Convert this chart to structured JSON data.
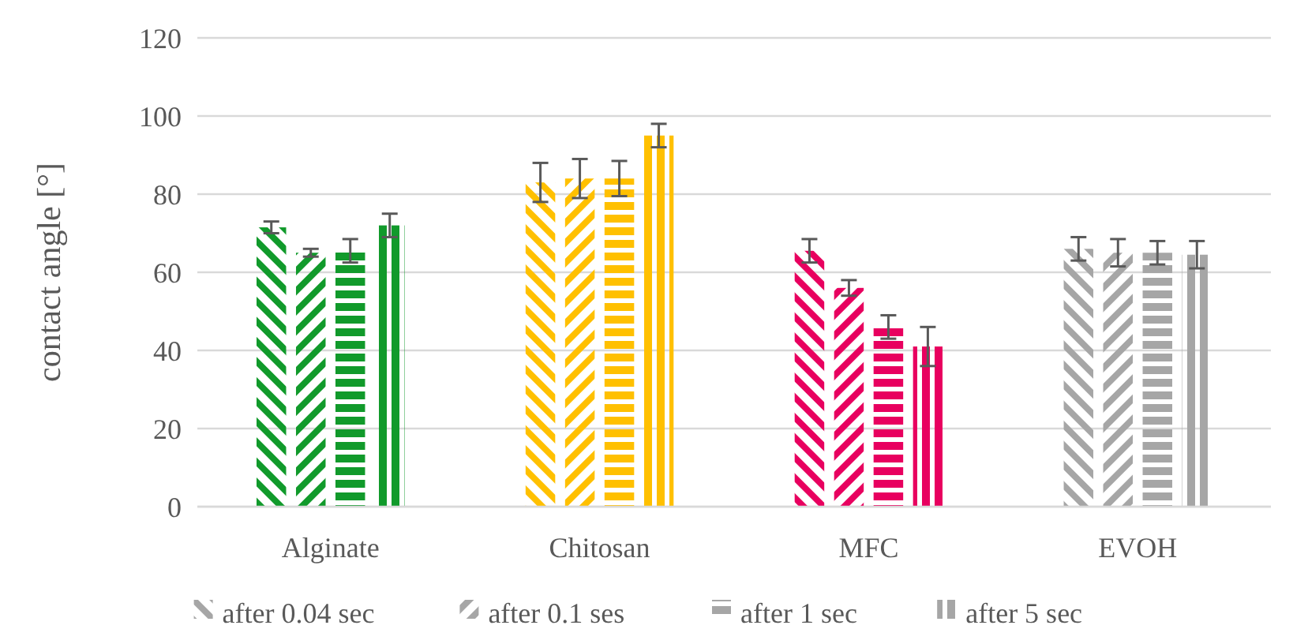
{
  "chart_data": {
    "type": "bar",
    "ylabel": "contact angle [°]",
    "categories": [
      "Alginate",
      "Chitosan",
      "MFC",
      "EVOH"
    ],
    "series": [
      {
        "name": "after 0.04 sec",
        "color": "#a6a6a6",
        "colors": [
          "#119a2b",
          "#ffc000",
          "#e8005f",
          "#a6a6a6"
        ],
        "values": [
          71.5,
          83,
          65.5,
          66
        ],
        "errors": [
          1.5,
          5,
          3,
          3
        ]
      },
      {
        "name": "after 0.1 ses",
        "color": "#a6a6a6",
        "colors": [
          "#119a2b",
          "#ffc000",
          "#e8005f",
          "#a6a6a6"
        ],
        "values": [
          65,
          84,
          56,
          65
        ],
        "errors": [
          1,
          5,
          2,
          3.5
        ]
      },
      {
        "name": "after 1 sec",
        "color": "#a6a6a6",
        "colors": [
          "#119a2b",
          "#ffc000",
          "#e8005f",
          "#a6a6a6"
        ],
        "values": [
          65.5,
          84,
          46,
          65
        ],
        "errors": [
          3,
          4.5,
          3,
          3
        ]
      },
      {
        "name": "after 5 sec",
        "color": "#a6a6a6",
        "colors": [
          "#119a2b",
          "#ffc000",
          "#e8005f",
          "#a6a6a6"
        ],
        "values": [
          72,
          95,
          41,
          64.5
        ],
        "errors": [
          3,
          3,
          5,
          3.5
        ]
      }
    ],
    "ylim": [
      0,
      120
    ],
    "yticks": [
      0,
      20,
      40,
      60,
      80,
      100,
      120
    ],
    "grid": "y",
    "legend": "bottom"
  }
}
